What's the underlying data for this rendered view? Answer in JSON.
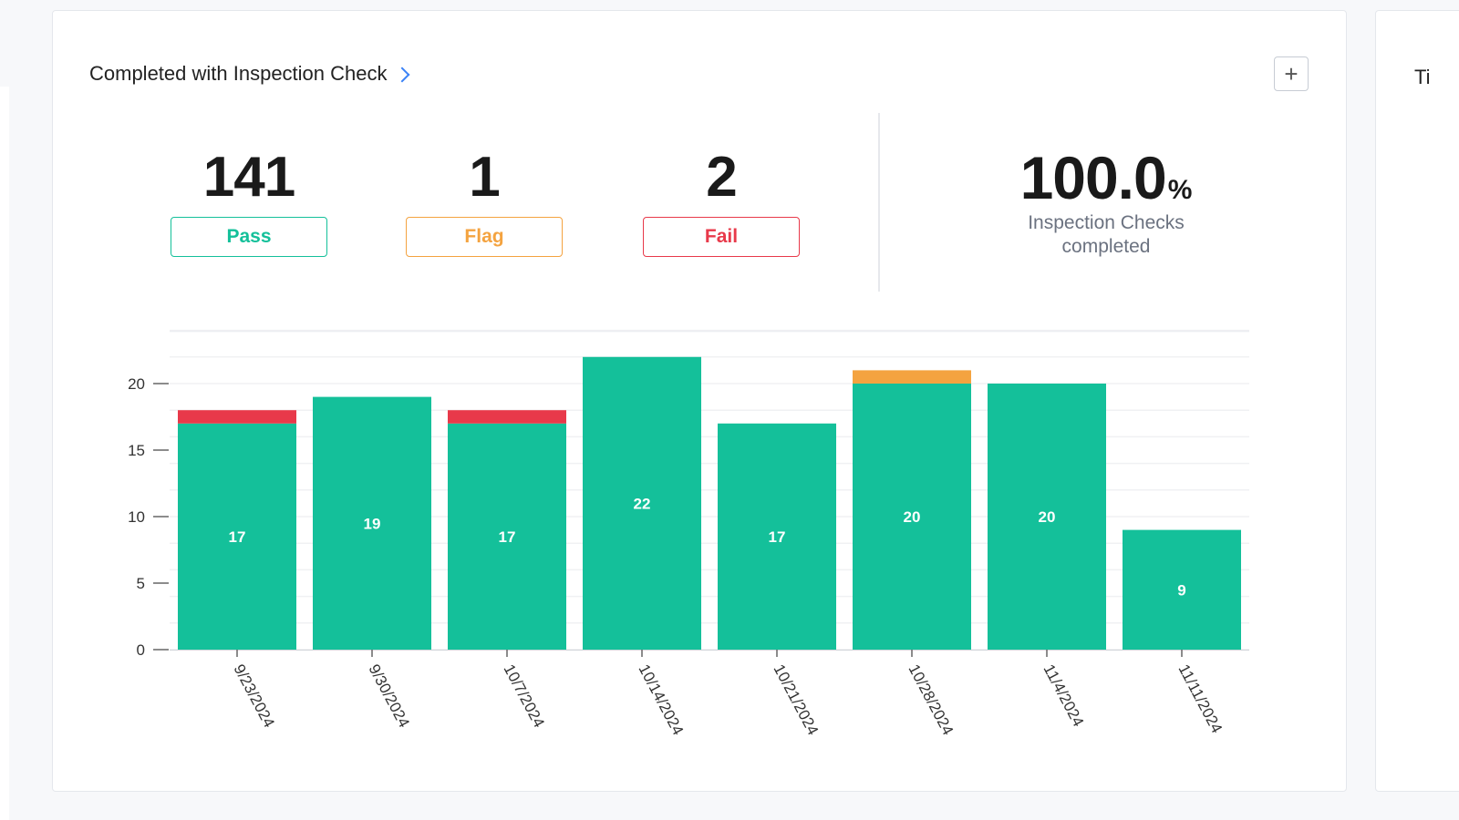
{
  "card": {
    "title": "Completed with Inspection Check",
    "add_label": "+"
  },
  "side_card": {
    "title_fragment": "Ti"
  },
  "stats": [
    {
      "key": "pass",
      "value": "141",
      "label": "Pass",
      "color": "#14c09a"
    },
    {
      "key": "flag",
      "value": "1",
      "label": "Flag",
      "color": "#f4a340"
    },
    {
      "key": "fail",
      "value": "2",
      "label": "Fail",
      "color": "#e8394a"
    }
  ],
  "completion": {
    "value": "100.0",
    "unit": "%",
    "caption": "Inspection Checks completed"
  },
  "colors": {
    "pass": "#14c09a",
    "flag": "#f4a340",
    "fail": "#e8394a",
    "accent": "#3b82f6"
  },
  "chart_data": {
    "type": "bar",
    "stacked": true,
    "categories": [
      "9/23/2024",
      "9/30/2024",
      "10/7/2024",
      "10/14/2024",
      "10/21/2024",
      "10/28/2024",
      "11/4/2024",
      "11/11/2024"
    ],
    "series": [
      {
        "key": "pass",
        "values": [
          17,
          19,
          17,
          22,
          17,
          20,
          20,
          9
        ],
        "color": "#14c09a"
      },
      {
        "key": "fail",
        "values": [
          1,
          0,
          1,
          0,
          0,
          0,
          0,
          0
        ],
        "color": "#e8394a"
      },
      {
        "key": "flag",
        "values": [
          0,
          0,
          0,
          0,
          0,
          1,
          0,
          0
        ],
        "color": "#f4a340"
      }
    ],
    "data_labels": [
      "17",
      "19",
      "17",
      "22",
      "17",
      "20",
      "20",
      "9"
    ],
    "y_ticks": [
      "0",
      "5",
      "10",
      "15",
      "20"
    ],
    "ylim": [
      0,
      24
    ],
    "grid": true,
    "legend": "none",
    "xlabel": "",
    "ylabel": ""
  }
}
